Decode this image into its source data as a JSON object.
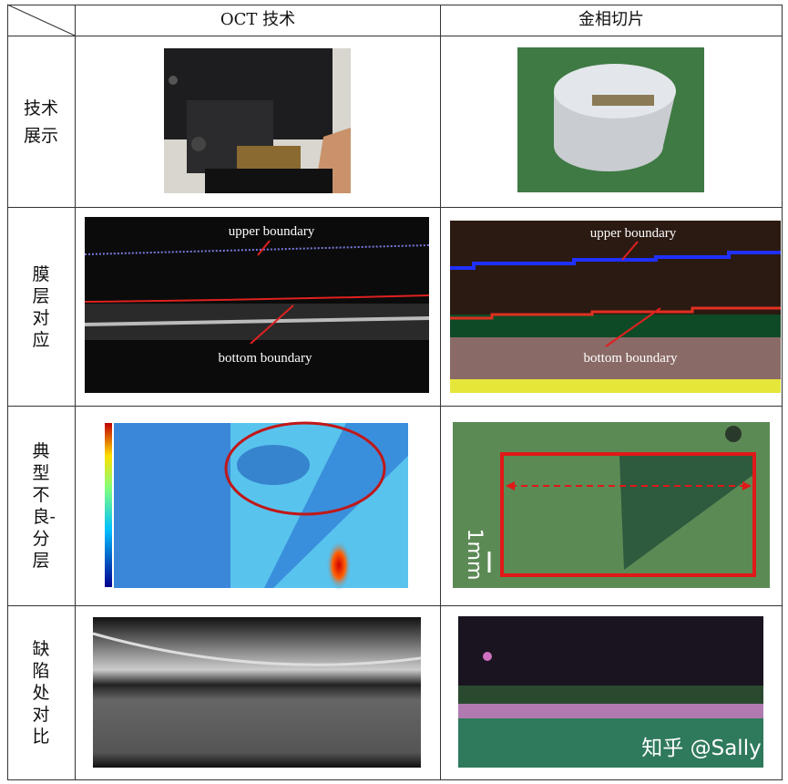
{
  "table": {
    "header": [
      "OCT 技术",
      "金相切片"
    ],
    "rows": [
      {
        "label": "技术展示"
      },
      {
        "label": "膜层对应",
        "oct_labels": [
          "upper boundary",
          "bottom boundary"
        ],
        "slice_labels": [
          "upper boundary",
          "bottom boundary"
        ]
      },
      {
        "label": "典型不良-分层",
        "slice_labels": [
          "1mm"
        ]
      },
      {
        "label": "缺陷处对比"
      }
    ],
    "watermark": "知乎 @Sally"
  }
}
